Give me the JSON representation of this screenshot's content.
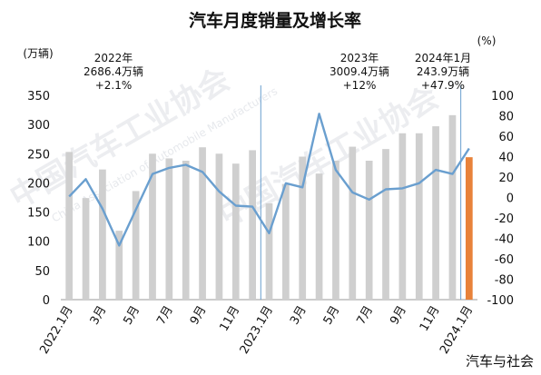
{
  "chart_data": {
    "type": "bar",
    "title": "汽车月度销量及增长率",
    "y_left_unit": "(万辆)",
    "y_right_unit": "(%)",
    "ylim_left": [
      0,
      350
    ],
    "ylim_right": [
      -100,
      100
    ],
    "y_left_ticks": [
      "0",
      "50",
      "100",
      "150",
      "200",
      "250",
      "300",
      "350"
    ],
    "y_right_ticks": [
      "-100",
      "-80",
      "-60",
      "-40",
      "-20",
      "0",
      "20",
      "40",
      "60",
      "80",
      "100"
    ],
    "categories": [
      "2022.1月",
      "",
      "3月",
      "",
      "5月",
      "",
      "7月",
      "",
      "9月",
      "",
      "11月",
      "",
      "2023.1月",
      "",
      "3月",
      "",
      "5月",
      "",
      "7月",
      "",
      "9月",
      "",
      "11月",
      "",
      "2024.1月"
    ],
    "series": [
      {
        "type": "bar",
        "values": [
          253,
          174,
          223,
          118,
          186,
          250,
          242,
          238,
          261,
          250,
          233,
          256,
          165,
          198,
          245,
          216,
          238,
          262,
          238,
          258,
          285,
          285,
          297,
          316,
          244
        ]
      },
      {
        "type": "line",
        "axis": "right",
        "values": [
          1,
          18,
          -11,
          -47,
          -12,
          23,
          29,
          32,
          25,
          6,
          -8,
          -9,
          -35,
          14,
          10,
          82,
          27,
          5,
          -2,
          8,
          9,
          14,
          27,
          23,
          48
        ]
      }
    ],
    "bar_color": "#cfcfcf",
    "highlight_bar_color": "#e8823a",
    "line_color": "#6a9fcf",
    "divider_color": "#6a9fcf",
    "annotations": [
      {
        "lines": [
          "2022年",
          "2686.4万辆",
          "+2.1%"
        ]
      },
      {
        "lines": [
          "2023年",
          "3009.4万辆",
          "+12%"
        ]
      },
      {
        "lines": [
          "2024年1月",
          "243.9万辆",
          "+47.9%"
        ]
      }
    ]
  },
  "watermark": {
    "main": "中国汽车工业协会",
    "sub": "China Association of Automobile Manufacturers"
  },
  "footer": "汽车与社会"
}
